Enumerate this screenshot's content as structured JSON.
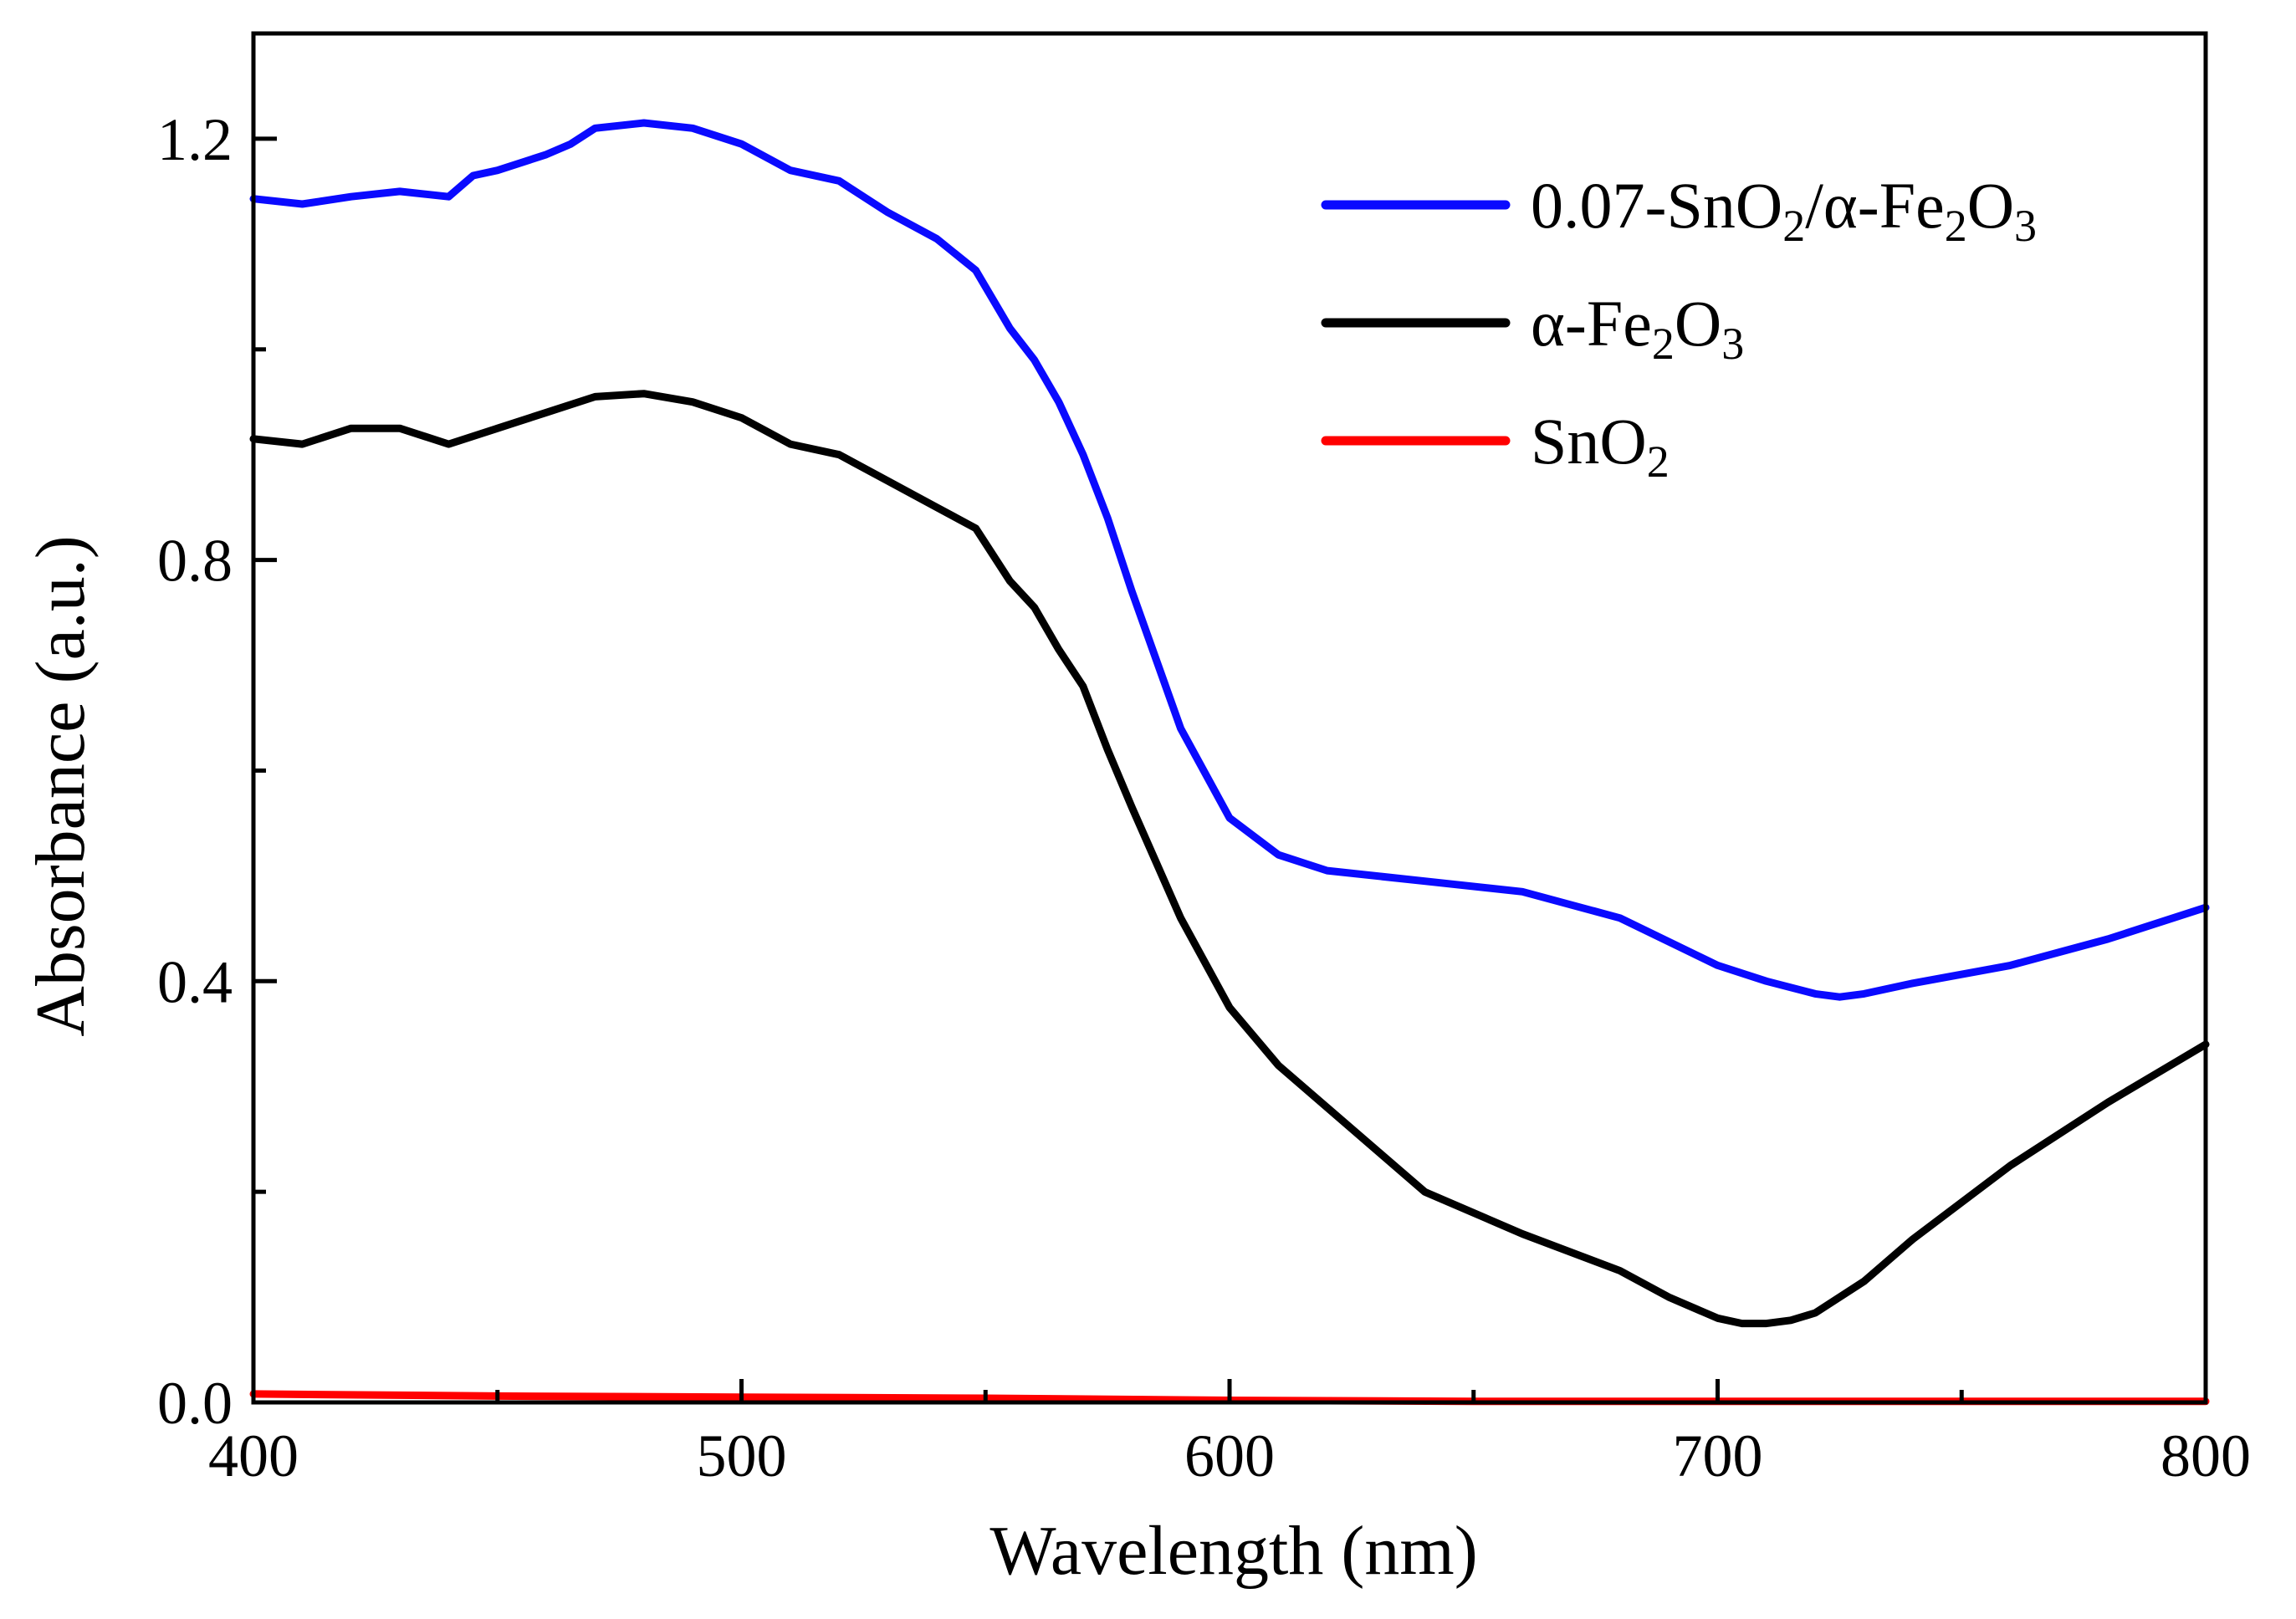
{
  "chart_data": {
    "type": "line",
    "title": "",
    "xlabel": "Wavelength (nm)",
    "ylabel": "Absorbance (a.u.)",
    "xlim": [
      400,
      800
    ],
    "ylim": [
      0.0,
      1.3
    ],
    "grid": false,
    "legend_position": "top-right",
    "x_ticks": [
      {
        "value": 400,
        "label": "400"
      },
      {
        "value": 500,
        "label": "500"
      },
      {
        "value": 600,
        "label": "600"
      },
      {
        "value": 700,
        "label": "700"
      },
      {
        "value": 800,
        "label": "800"
      }
    ],
    "y_ticks": [
      {
        "value": 0.0,
        "label": "0.0"
      },
      {
        "value": 0.4,
        "label": "0.4"
      },
      {
        "value": 0.8,
        "label": "0.8"
      },
      {
        "value": 1.2,
        "label": "1.2"
      }
    ],
    "x_minor_ticks": [
      450,
      550,
      650,
      750
    ],
    "y_minor_ticks": [
      0.2,
      0.6,
      1.0
    ],
    "series": [
      {
        "name": "0.07-SnO2/α-Fe2O3",
        "legend_parts": [
          {
            "t": "0.07-SnO",
            "sub": false
          },
          {
            "t": "2",
            "sub": true
          },
          {
            "t": "/α-Fe",
            "sub": false
          },
          {
            "t": "2",
            "sub": true
          },
          {
            "t": "O",
            "sub": false
          },
          {
            "t": "3",
            "sub": true
          }
        ],
        "color": "#0a0aff",
        "x": [
          400,
          410,
          420,
          430,
          440,
          445,
          450,
          460,
          465,
          470,
          480,
          490,
          500,
          510,
          520,
          530,
          540,
          548,
          555,
          560,
          565,
          570,
          575,
          580,
          590,
          600,
          610,
          620,
          640,
          660,
          680,
          700,
          710,
          720,
          725,
          730,
          740,
          760,
          780,
          800
        ],
        "y": [
          1.143,
          1.138,
          1.145,
          1.15,
          1.145,
          1.165,
          1.17,
          1.185,
          1.195,
          1.21,
          1.215,
          1.21,
          1.195,
          1.17,
          1.16,
          1.13,
          1.105,
          1.075,
          1.02,
          0.99,
          0.95,
          0.9,
          0.84,
          0.77,
          0.64,
          0.555,
          0.52,
          0.505,
          0.495,
          0.485,
          0.46,
          0.415,
          0.4,
          0.388,
          0.385,
          0.388,
          0.398,
          0.415,
          0.44,
          0.47
        ]
      },
      {
        "name": "α-Fe2O3",
        "legend_parts": [
          {
            "t": "α-Fe",
            "sub": false
          },
          {
            "t": "2",
            "sub": true
          },
          {
            "t": "O",
            "sub": false
          },
          {
            "t": "3",
            "sub": true
          }
        ],
        "color": "#000000",
        "x": [
          400,
          410,
          420,
          430,
          440,
          450,
          460,
          470,
          480,
          490,
          500,
          510,
          520,
          530,
          540,
          548,
          555,
          560,
          565,
          570,
          575,
          580,
          590,
          600,
          610,
          620,
          640,
          660,
          680,
          690,
          700,
          705,
          710,
          715,
          720,
          730,
          740,
          760,
          780,
          800
        ],
        "y": [
          0.915,
          0.91,
          0.925,
          0.925,
          0.91,
          0.925,
          0.94,
          0.955,
          0.958,
          0.95,
          0.935,
          0.91,
          0.9,
          0.875,
          0.85,
          0.83,
          0.78,
          0.755,
          0.715,
          0.68,
          0.62,
          0.565,
          0.46,
          0.375,
          0.32,
          0.28,
          0.2,
          0.16,
          0.125,
          0.1,
          0.08,
          0.075,
          0.075,
          0.078,
          0.085,
          0.115,
          0.155,
          0.225,
          0.285,
          0.34
        ]
      },
      {
        "name": "SnO2",
        "legend_parts": [
          {
            "t": "SnO",
            "sub": false
          },
          {
            "t": "2",
            "sub": true
          }
        ],
        "color": "#ff0000",
        "x": [
          400,
          450,
          500,
          550,
          600,
          650,
          700,
          750,
          800
        ],
        "y": [
          0.008,
          0.006,
          0.005,
          0.004,
          0.002,
          0.001,
          0.001,
          0.001,
          0.001
        ]
      }
    ]
  }
}
